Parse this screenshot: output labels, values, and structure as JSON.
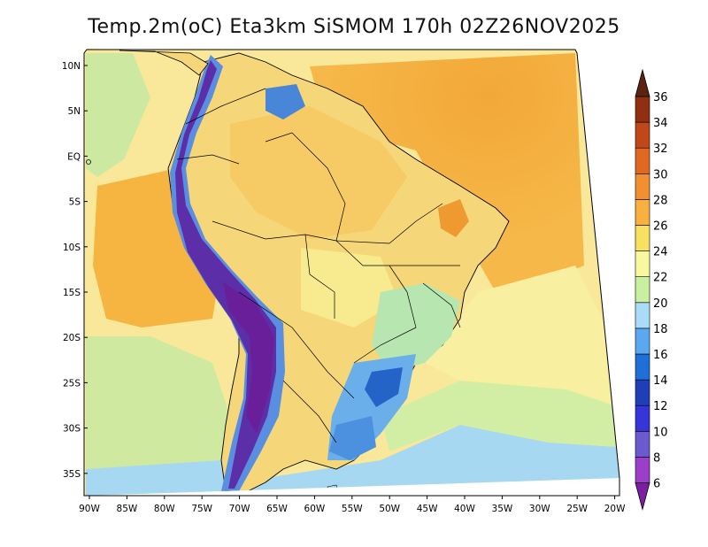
{
  "title": "Temp.2m(oC) Eta3km SiSMOM 170h 02Z26NOV2025",
  "lat_labels": [
    "10N",
    "5N",
    "EQ",
    "5S",
    "10S",
    "15S",
    "20S",
    "25S",
    "30S",
    "35S"
  ],
  "lon_labels": [
    "90W",
    "85W",
    "80W",
    "75W",
    "70W",
    "65W",
    "60W",
    "55W",
    "50W",
    "45W",
    "40W",
    "35W",
    "30W",
    "25W",
    "20W"
  ],
  "colorbar": {
    "labels": [
      "6",
      "8",
      "10",
      "12",
      "14",
      "16",
      "18",
      "20",
      "22",
      "24",
      "26",
      "28",
      "30",
      "32",
      "34",
      "36"
    ],
    "colors": [
      "#7b1fa2",
      "#9c3fc8",
      "#6a5acd",
      "#3535d8",
      "#1f3fb8",
      "#1e6fd8",
      "#5aa8f0",
      "#a8dcf8",
      "#c8f0a0",
      "#f8f8a0",
      "#f8e060",
      "#f8b040",
      "#f09030",
      "#e06820",
      "#c04818",
      "#903010",
      "#5a2410"
    ]
  },
  "map": {
    "ocean_color": "#f7df80",
    "warm_band_color": "#f6b440",
    "cool_ocean_color": "#cbe88f",
    "south_ocean_color": "#9fd6f0",
    "land_color": "#f5d870",
    "andes_color": "#6a2aa8"
  }
}
